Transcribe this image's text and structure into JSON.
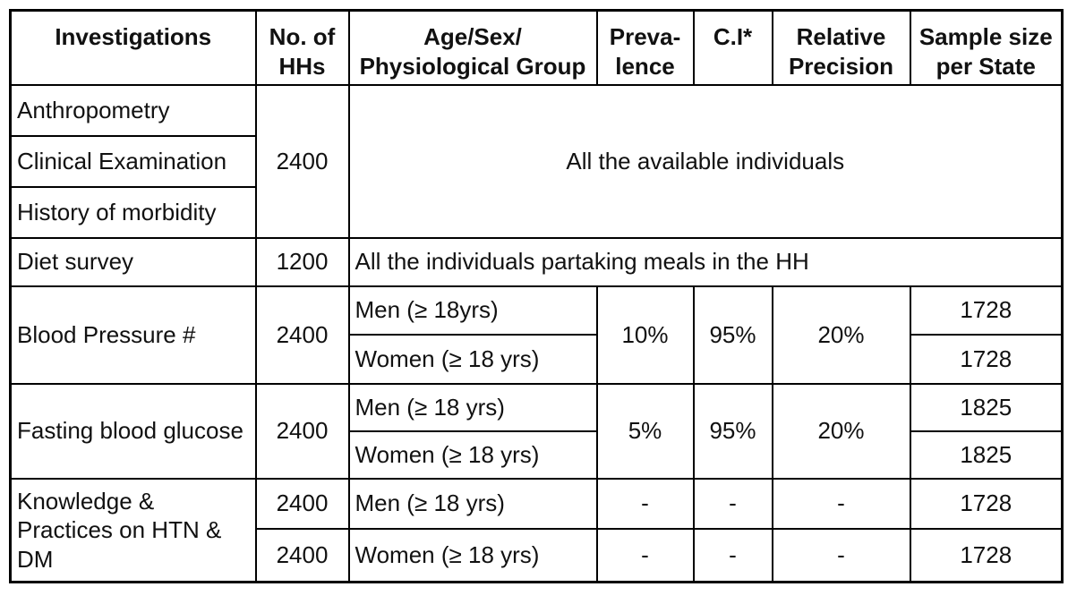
{
  "table": {
    "header": {
      "investigations": "Investigations",
      "no_of_hhs": "No. of\nHHs",
      "age_sex_group": "Age/Sex/\nPhysiological Group",
      "prevalence": "Preva-\nlence",
      "ci": "C.I*",
      "relative_precision": "Relative\nPrecision",
      "sample_size": "Sample size\nper State"
    },
    "rows": {
      "anthropometry": {
        "investigation": "Anthropometry"
      },
      "clinical_examination": {
        "investigation": "Clinical Examination"
      },
      "history_of_morbidity": {
        "investigation": "History of morbidity"
      },
      "anthro_section": {
        "no_of_hhs": "2400",
        "group": "All the available individuals"
      },
      "diet_survey": {
        "investigation": "Diet survey",
        "no_of_hhs": "1200",
        "group": "All the individuals partaking meals in the HH"
      },
      "blood_pressure": {
        "investigation": "Blood Pressure #",
        "no_of_hhs": "2400",
        "group_men": "Men (≥ 18yrs)",
        "group_women": "Women (≥ 18 yrs)",
        "prevalence": "10%",
        "ci": "95%",
        "relative_precision": "20%",
        "sample_men": "1728",
        "sample_women": "1728"
      },
      "fasting_blood_glucose": {
        "investigation": "Fasting blood glucose",
        "no_of_hhs": "2400",
        "group_men": "Men (≥ 18 yrs)",
        "group_women": "Women (≥ 18 yrs)",
        "prevalence": "5%",
        "ci": "95%",
        "relative_precision": "20%",
        "sample_men": "1825",
        "sample_women": "1825"
      },
      "knowledge_practices": {
        "investigation": "Knowledge &\nPractices on HTN &\nDM",
        "no_of_hhs_men": "2400",
        "no_of_hhs_women": "2400",
        "group_men": "Men (≥ 18 yrs)",
        "group_women": "Women (≥ 18 yrs)",
        "dash": "-",
        "sample_men": "1728",
        "sample_women": "1728"
      }
    },
    "colors": {
      "text": "#111111",
      "border": "#000000",
      "background": "#ffffff"
    }
  }
}
